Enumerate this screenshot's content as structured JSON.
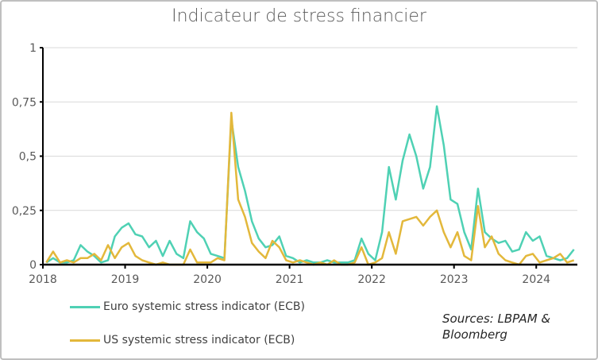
{
  "chart_data": {
    "type": "line",
    "title": "Indicateur de stress financier",
    "xlabel": "",
    "ylabel": "",
    "xlim": [
      "2018-01-01",
      "2024-07-01"
    ],
    "ylim": [
      0,
      1
    ],
    "x_ticks": [
      "2018",
      "2019",
      "2020",
      "2021",
      "2022",
      "2023",
      "2024"
    ],
    "y_ticks": [
      "0",
      "0,25",
      "0,5",
      "0,75",
      "1"
    ],
    "y_tick_values": [
      0,
      0.25,
      0.5,
      0.75,
      1
    ],
    "grid": true,
    "legend_position": "bottom-left",
    "x": [
      "2018-01",
      "2018-02",
      "2018-03",
      "2018-04",
      "2018-05",
      "2018-06",
      "2018-07",
      "2018-08",
      "2018-09",
      "2018-10",
      "2018-11",
      "2018-12",
      "2019-01",
      "2019-02",
      "2019-03",
      "2019-04",
      "2019-05",
      "2019-06",
      "2019-07",
      "2019-08",
      "2019-09",
      "2019-10",
      "2019-11",
      "2019-12",
      "2020-01",
      "2020-02",
      "2020-03",
      "2020-04",
      "2020-05",
      "2020-06",
      "2020-07",
      "2020-08",
      "2020-09",
      "2020-10",
      "2020-11",
      "2020-12",
      "2021-01",
      "2021-02",
      "2021-03",
      "2021-04",
      "2021-05",
      "2021-06",
      "2021-07",
      "2021-08",
      "2021-09",
      "2021-10",
      "2021-11",
      "2021-12",
      "2022-01",
      "2022-02",
      "2022-03",
      "2022-04",
      "2022-05",
      "2022-06",
      "2022-07",
      "2022-08",
      "2022-09",
      "2022-10",
      "2022-11",
      "2022-12",
      "2023-01",
      "2023-02",
      "2023-03",
      "2023-04",
      "2023-05",
      "2023-06",
      "2023-07",
      "2023-08",
      "2023-09",
      "2023-10",
      "2023-11",
      "2023-12",
      "2024-01",
      "2024-02",
      "2024-03",
      "2024-04",
      "2024-05",
      "2024-06"
    ],
    "series": [
      {
        "name": "Euro systemic stress indicator (ECB)",
        "color": "#4fd1b4",
        "values": [
          0.01,
          0.03,
          0.01,
          0.01,
          0.02,
          0.09,
          0.06,
          0.04,
          0.01,
          0.02,
          0.13,
          0.17,
          0.19,
          0.14,
          0.13,
          0.08,
          0.11,
          0.04,
          0.11,
          0.05,
          0.03,
          0.2,
          0.15,
          0.12,
          0.05,
          0.04,
          0.03,
          0.67,
          0.45,
          0.34,
          0.2,
          0.12,
          0.08,
          0.09,
          0.13,
          0.04,
          0.03,
          0.01,
          0.02,
          0.01,
          0.01,
          0.02,
          0.01,
          0.01,
          0.01,
          0.02,
          0.12,
          0.05,
          0.02,
          0.15,
          0.45,
          0.3,
          0.48,
          0.6,
          0.5,
          0.35,
          0.45,
          0.73,
          0.55,
          0.3,
          0.28,
          0.15,
          0.07,
          0.35,
          0.15,
          0.12,
          0.1,
          0.11,
          0.06,
          0.07,
          0.15,
          0.11,
          0.13,
          0.04,
          0.03,
          0.02,
          0.03,
          0.07
        ]
      },
      {
        "name": "US systemic stress indicator (ECB)",
        "color": "#e3b83b",
        "values": [
          0.01,
          0.06,
          0.01,
          0.02,
          0.01,
          0.03,
          0.03,
          0.05,
          0.02,
          0.09,
          0.03,
          0.08,
          0.1,
          0.04,
          0.02,
          0.01,
          0.0,
          0.01,
          0.0,
          0.0,
          0.0,
          0.07,
          0.01,
          0.01,
          0.01,
          0.03,
          0.02,
          0.7,
          0.3,
          0.22,
          0.1,
          0.06,
          0.03,
          0.11,
          0.08,
          0.02,
          0.01,
          0.02,
          0.01,
          0.0,
          0.01,
          0.0,
          0.02,
          0.0,
          0.0,
          0.01,
          0.08,
          0.0,
          0.01,
          0.03,
          0.15,
          0.05,
          0.2,
          0.21,
          0.22,
          0.18,
          0.22,
          0.25,
          0.15,
          0.08,
          0.15,
          0.04,
          0.02,
          0.27,
          0.08,
          0.13,
          0.05,
          0.02,
          0.01,
          0.0,
          0.04,
          0.05,
          0.01,
          0.02,
          0.03,
          0.05,
          0.01,
          0.02
        ]
      }
    ],
    "annotation": "Sources: LBPAM & Bloomberg"
  }
}
